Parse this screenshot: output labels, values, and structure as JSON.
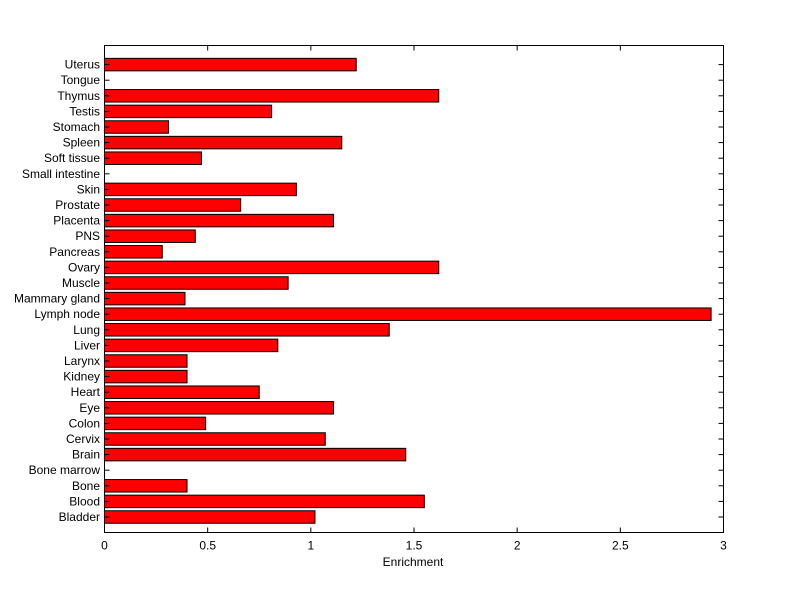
{
  "chart_data": {
    "type": "bar",
    "orientation": "horizontal",
    "xlabel": "Enrichment",
    "ylabel": "",
    "xlim": [
      0,
      3
    ],
    "xticks": [
      "0",
      "0.5",
      "1",
      "1.5",
      "2",
      "2.5",
      "3"
    ],
    "bar_color": "#ff0000",
    "grid": false,
    "categories": [
      "Bladder",
      "Blood",
      "Bone",
      "Bone marrow",
      "Brain",
      "Cervix",
      "Colon",
      "Eye",
      "Heart",
      "Kidney",
      "Larynx",
      "Liver",
      "Lung",
      "Lymph node",
      "Mammary gland",
      "Muscle",
      "Ovary",
      "Pancreas",
      "PNS",
      "Placenta",
      "Prostate",
      "Skin",
      "Small intestine",
      "Soft tissue",
      "Spleen",
      "Stomach",
      "Testis",
      "Thymus",
      "Tongue",
      "Uterus"
    ],
    "values": [
      1.02,
      1.55,
      0.4,
      0,
      1.46,
      1.07,
      0.49,
      1.11,
      0.75,
      0.4,
      0.4,
      0.84,
      1.38,
      2.94,
      0.39,
      0.89,
      1.62,
      0.28,
      0.44,
      1.11,
      0.66,
      0.93,
      0,
      0.47,
      1.15,
      0.31,
      0.81,
      1.62,
      0,
      1.22
    ]
  }
}
